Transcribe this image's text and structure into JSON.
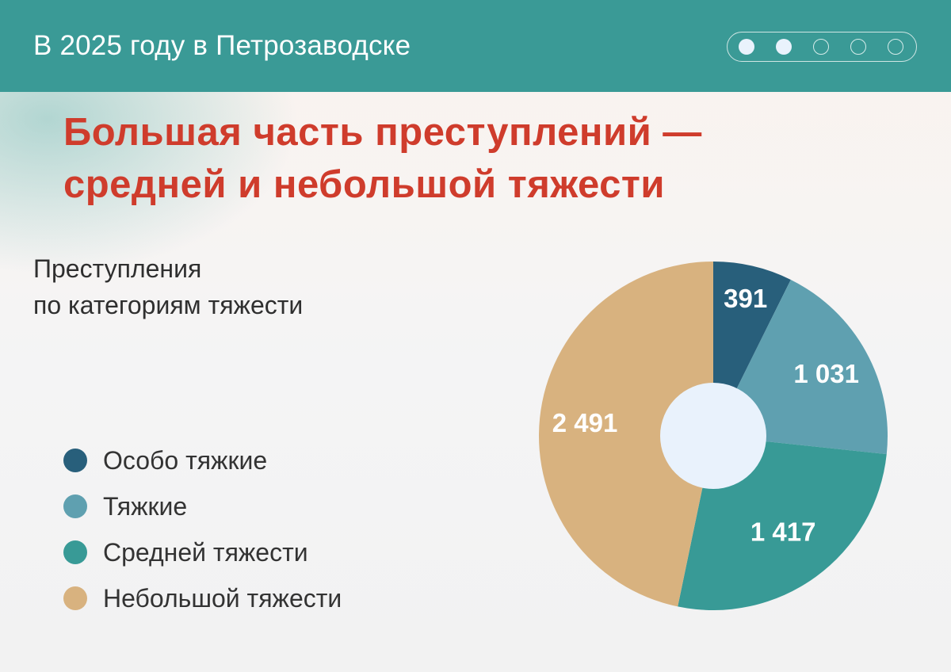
{
  "header": {
    "title": "В 2025 году в Петрозаводске",
    "pager": {
      "total": 5,
      "active": [
        1,
        2
      ]
    }
  },
  "headline": {
    "line1": "Большая часть преступлений —",
    "line2": "средней и небольшой тяжести"
  },
  "subtitle": {
    "line1": "Преступления",
    "line2": "по категориям тяжести"
  },
  "colors": {
    "header_bg": "#3a9a96",
    "headline": "#cf3c2c",
    "hole": "#e9f2fc"
  },
  "chart_data": {
    "type": "pie",
    "donut": true,
    "start_angle_deg": 0,
    "direction": "clockwise",
    "legend_position": "left",
    "slices": [
      {
        "name": "Особо тяжкие",
        "value": 391,
        "label": "391",
        "color": "#285f7b"
      },
      {
        "name": "Тяжкие",
        "value": 1031,
        "label": "1 031",
        "color": "#5fa0b0"
      },
      {
        "name": "Средней тяжести",
        "value": 1417,
        "label": "1 417",
        "color": "#389a96"
      },
      {
        "name": "Небольшой тяжести",
        "value": 2491,
        "label": "2 491",
        "color": "#d8b27f"
      }
    ]
  }
}
